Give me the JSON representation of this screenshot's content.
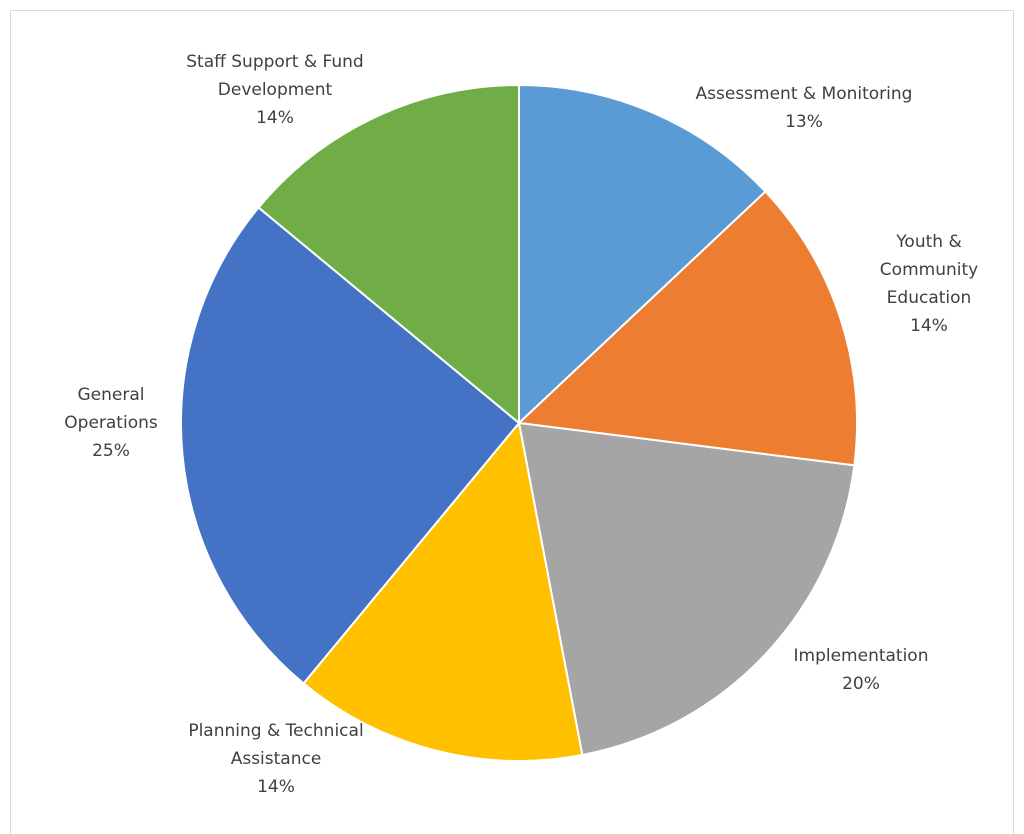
{
  "chart_data": {
    "type": "pie",
    "title": "",
    "slices": [
      {
        "name": "Assessment & Monitoring",
        "label_lines": [
          "Assessment & Monitoring"
        ],
        "pct_label": "13%",
        "value": 13,
        "color": "#5B9BD5"
      },
      {
        "name": "Youth & Community Education",
        "label_lines": [
          "Youth &",
          "Community",
          "Education"
        ],
        "pct_label": "14%",
        "value": 14,
        "color": "#ED7D31"
      },
      {
        "name": "Implementation",
        "label_lines": [
          "Implementation"
        ],
        "pct_label": "20%",
        "value": 20,
        "color": "#A5A5A5"
      },
      {
        "name": "Planning & Technical Assistance",
        "label_lines": [
          "Planning & Technical",
          "Assistance"
        ],
        "pct_label": "14%",
        "value": 14,
        "color": "#FFC000"
      },
      {
        "name": "General Operations",
        "label_lines": [
          "General",
          "Operations"
        ],
        "pct_label": "25%",
        "value": 25,
        "color": "#4472C4"
      },
      {
        "name": "Staff Support & Fund Development",
        "label_lines": [
          "Staff Support & Fund",
          "Development"
        ],
        "pct_label": "14%",
        "value": 14,
        "color": "#70AD47"
      }
    ],
    "start_angle": "top",
    "direction": "clockwise",
    "legend": "none",
    "data_labels": "outside-end"
  }
}
